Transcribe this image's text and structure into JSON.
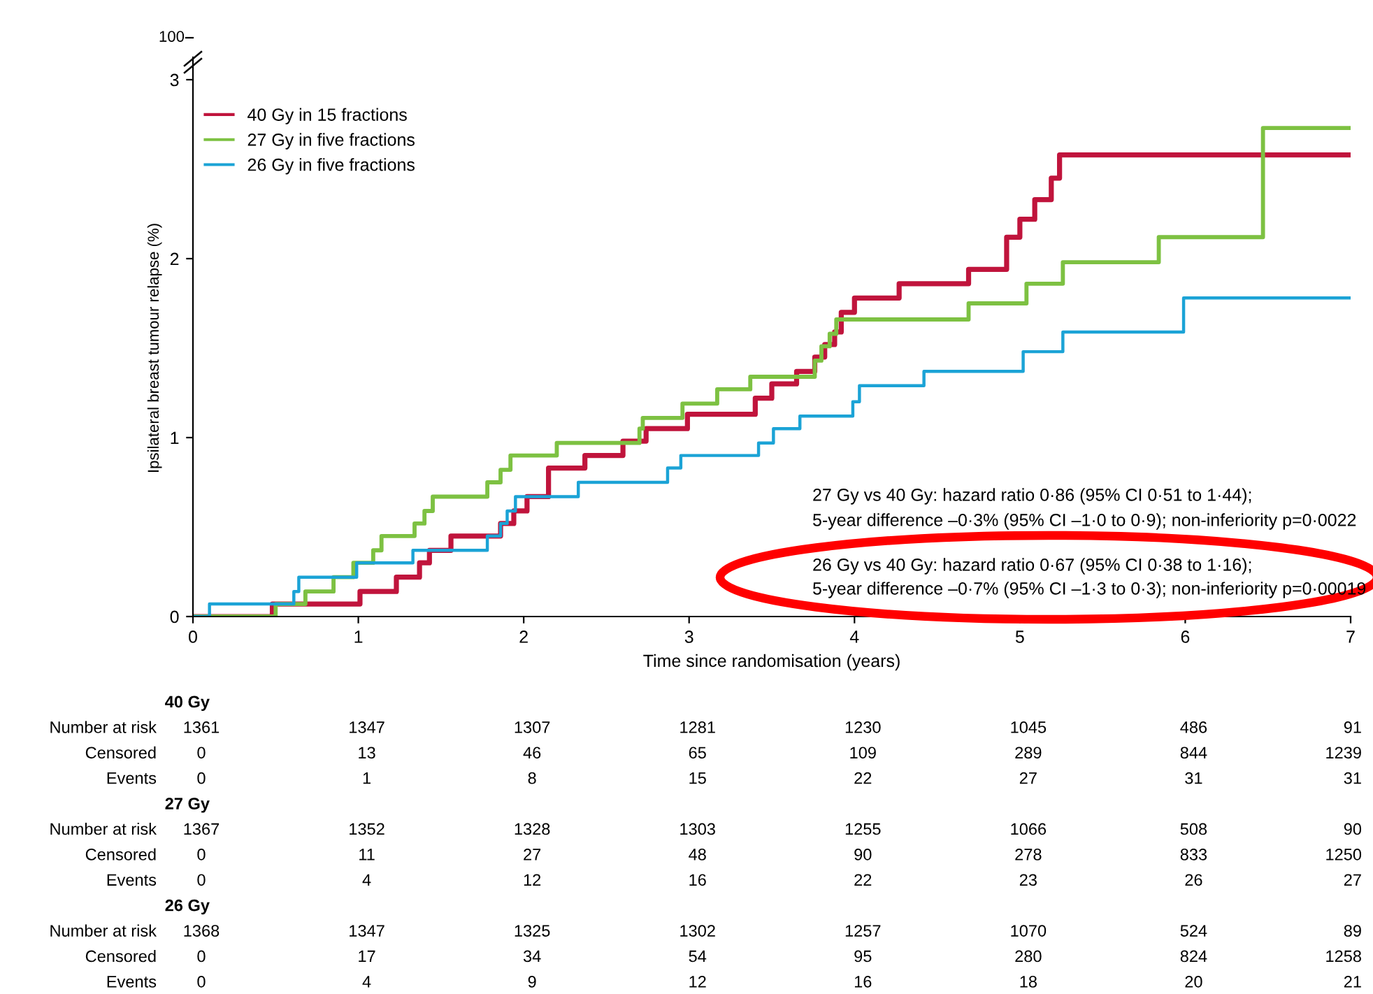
{
  "chart_data": {
    "type": "step",
    "xlabel": "Time since randomisation (years)",
    "ylabel": "Ipsilateral breast tumour relapse (%)",
    "xlim": [
      0,
      7
    ],
    "xticks": [
      0,
      1,
      2,
      3,
      4,
      5,
      6,
      7
    ],
    "ylim": [
      0,
      3
    ],
    "yticks": [
      0,
      1,
      2,
      3
    ],
    "grid": false,
    "legend": "top left",
    "marker": "none",
    "line_style": "solid",
    "series": [
      {
        "name": "40 Gy in 15 fractions",
        "color": "#c0143c",
        "x": [
          0,
          0.48,
          1.01,
          1.23,
          1.37,
          1.43,
          1.56,
          1.86,
          1.94,
          2.02,
          2.15,
          2.37,
          2.6,
          2.74,
          2.99,
          3.4,
          3.5,
          3.65,
          3.76,
          3.82,
          3.88,
          3.92,
          4.0,
          4.27,
          4.69,
          4.92,
          5.0,
          5.09,
          5.19,
          5.24,
          7
        ],
        "values": [
          0,
          0.07,
          0.14,
          0.22,
          0.3,
          0.37,
          0.45,
          0.52,
          0.59,
          0.67,
          0.83,
          0.9,
          0.98,
          1.05,
          1.13,
          1.22,
          1.3,
          1.37,
          1.45,
          1.52,
          1.59,
          1.7,
          1.78,
          1.86,
          1.94,
          2.12,
          2.22,
          2.33,
          2.45,
          2.58,
          2.58
        ]
      },
      {
        "name": "27 Gy in five fractions",
        "color": "#7dc142",
        "x": [
          0,
          0.5,
          0.68,
          0.85,
          0.97,
          1.09,
          1.14,
          1.34,
          1.4,
          1.45,
          1.78,
          1.86,
          1.92,
          2.2,
          2.7,
          2.72,
          2.96,
          3.17,
          3.37,
          3.76,
          3.8,
          3.85,
          3.89,
          4.69,
          5.04,
          5.26,
          5.84,
          6.47,
          7
        ],
        "values": [
          0,
          0.07,
          0.14,
          0.22,
          0.3,
          0.37,
          0.45,
          0.52,
          0.59,
          0.67,
          0.75,
          0.82,
          0.9,
          0.97,
          1.05,
          1.11,
          1.19,
          1.27,
          1.34,
          1.43,
          1.51,
          1.58,
          1.66,
          1.75,
          1.86,
          1.98,
          2.12,
          2.73,
          2.73
        ]
      },
      {
        "name": "26 Gy in five fractions",
        "color": "#1ba3d6",
        "x": [
          0,
          0.1,
          0.61,
          0.64,
          0.99,
          1.33,
          1.78,
          1.86,
          1.9,
          1.95,
          2.33,
          2.87,
          2.95,
          3.42,
          3.51,
          3.67,
          3.99,
          4.03,
          4.42,
          5.02,
          5.26,
          5.99,
          7
        ],
        "values": [
          0,
          0.07,
          0.14,
          0.22,
          0.3,
          0.37,
          0.45,
          0.52,
          0.59,
          0.67,
          0.75,
          0.83,
          0.9,
          0.97,
          1.05,
          1.12,
          1.2,
          1.29,
          1.37,
          1.48,
          1.59,
          1.78,
          1.78
        ]
      }
    ],
    "annotations": [
      "27 Gy vs 40 Gy: hazard ratio 0·86 (95% CI 0·51 to 1·44);",
      "5-year difference –0·3% (95% CI –1·0 to 0·9); non-inferiority p=0·0022",
      "26 Gy vs 40 Gy: hazard ratio 0·67 (95% CI 0·38 to 1·16);",
      "5-year difference –0·7% (95% CI –1·3 to 0·3); non-inferiority p=0·00019",
      "100",
      "40 Gy",
      "Number at risk",
      "1361",
      "1347",
      "1307",
      "1281",
      "1230",
      "1045",
      "486",
      "91",
      "Censored",
      "0",
      "13",
      "46",
      "65",
      "109",
      "289",
      "844",
      "1239",
      "Events",
      "0",
      "1",
      "8",
      "15",
      "22",
      "27",
      "31",
      "31",
      "27 Gy",
      "Number at risk",
      "1367",
      "1352",
      "1328",
      "1303",
      "1255",
      "1066",
      "508",
      "90",
      "Censored",
      "0",
      "11",
      "27",
      "48",
      "90",
      "278",
      "833",
      "1250",
      "Events",
      "0",
      "4",
      "12",
      "16",
      "22",
      "23",
      "26",
      "27",
      "26 Gy",
      "Number at risk",
      "1368",
      "1347",
      "1325",
      "1302",
      "1257",
      "1070",
      "524",
      "89",
      "Censored",
      "0",
      "17",
      "34",
      "54",
      "95",
      "280",
      "824",
      "1258",
      "Events",
      "0",
      "4",
      "9",
      "12",
      "16",
      "18",
      "20",
      "21"
    ]
  }
}
